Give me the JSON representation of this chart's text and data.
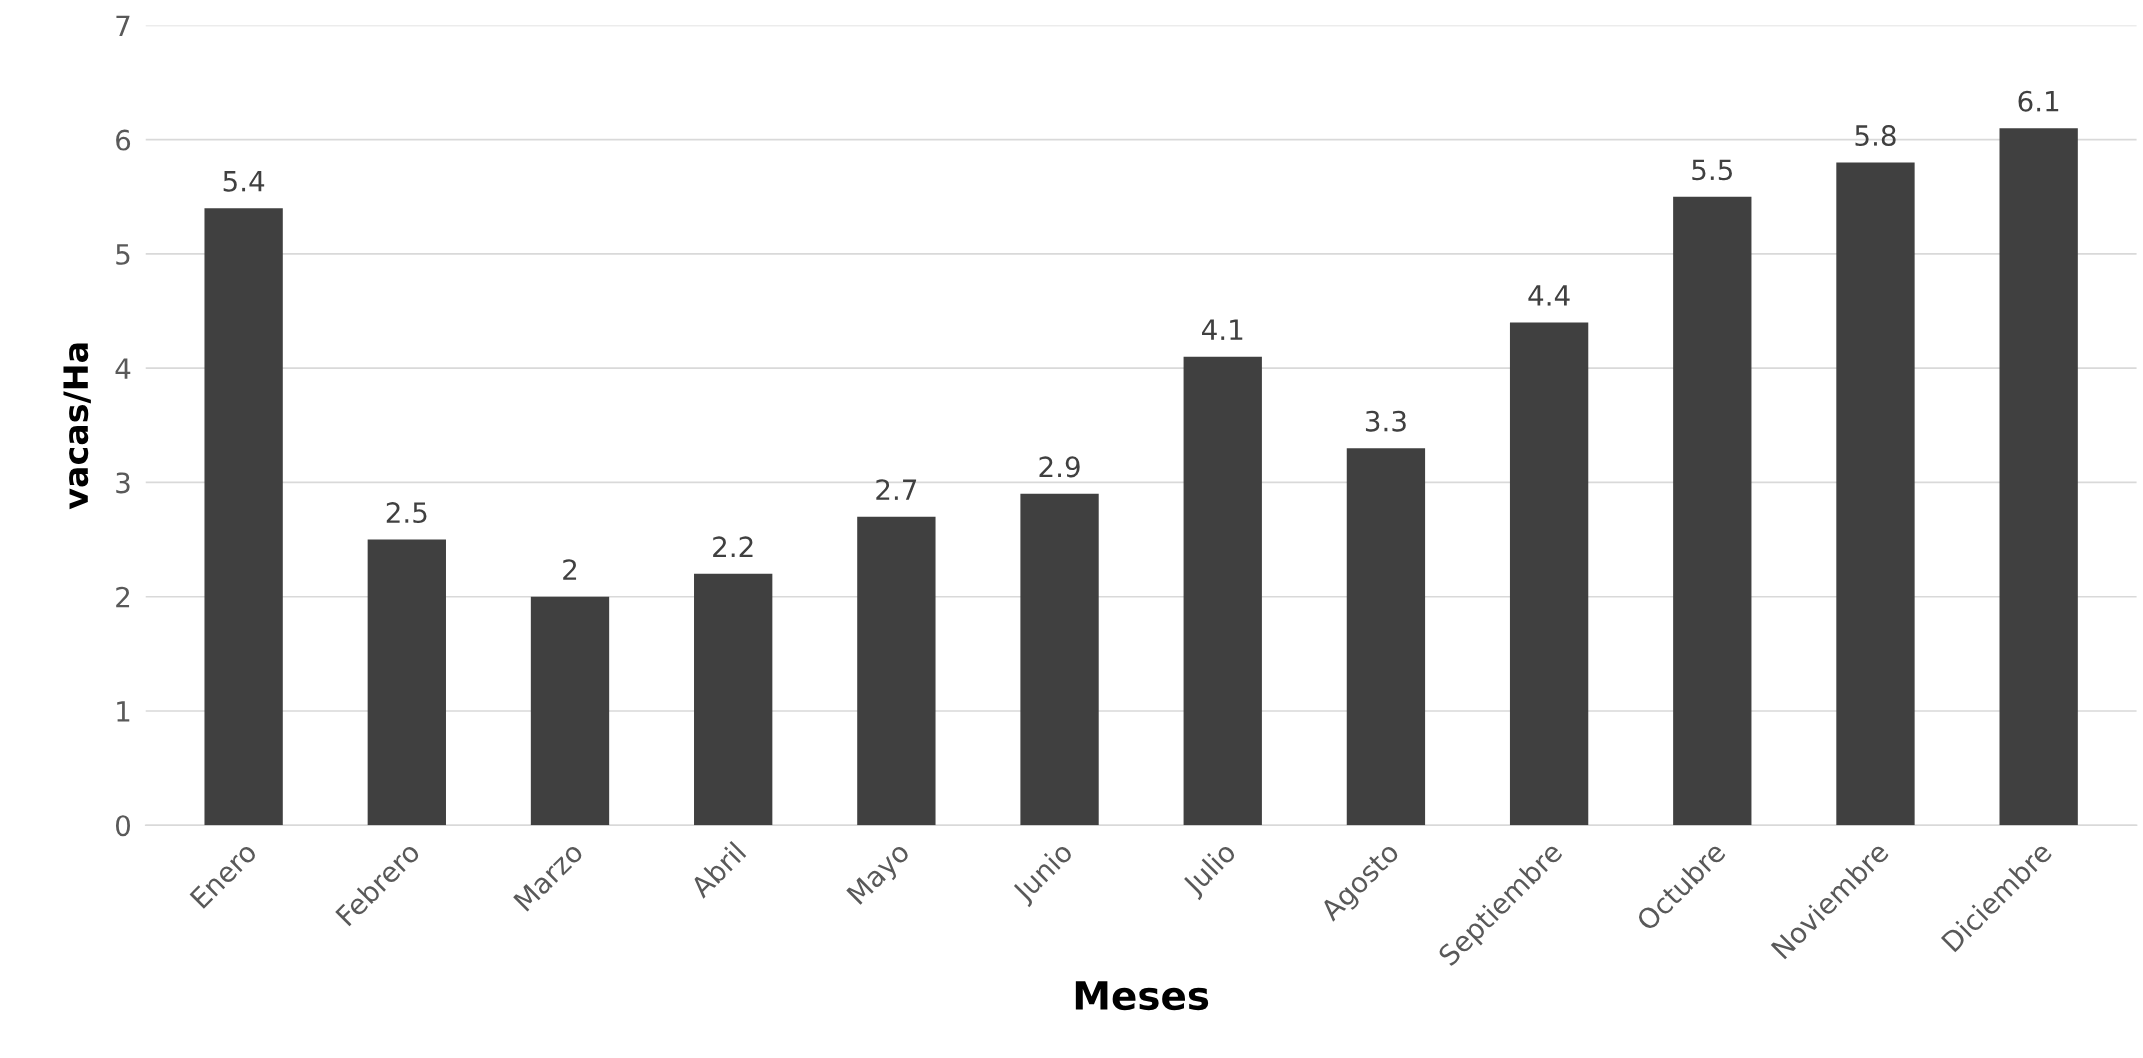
{
  "chart_data": {
    "type": "bar",
    "xlabel": "Meses",
    "ylabel": "vacas/Ha",
    "categories": [
      "Enero",
      "Febrero",
      "Marzo",
      "Abril",
      "Mayo",
      "Junio",
      "Julio",
      "Agosto",
      "Septiembre",
      "Octubre",
      "Noviembre",
      "Diciembre"
    ],
    "values": [
      5.4,
      2.5,
      2,
      2.2,
      2.7,
      2.9,
      4.1,
      3.3,
      4.4,
      5.5,
      5.8,
      6.1
    ],
    "color": "#404040",
    "ylim": [
      0,
      7
    ],
    "yticks": [
      0,
      1,
      2,
      3,
      4,
      5,
      6,
      7
    ],
    "grid": "y",
    "data_labels": true
  }
}
